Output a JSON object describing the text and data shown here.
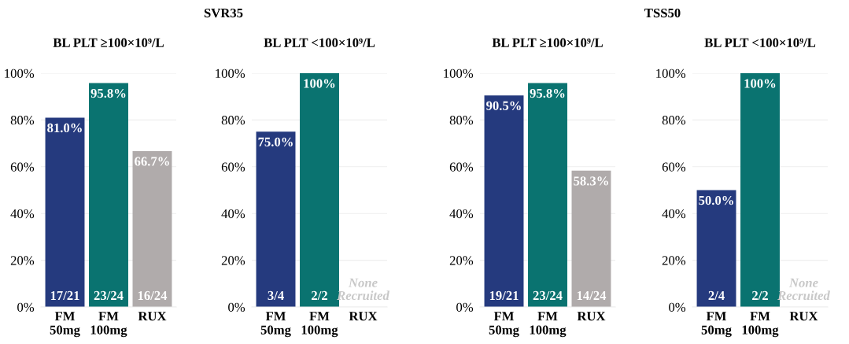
{
  "chart_data": [
    {
      "type": "bar",
      "title": "BL PLT ≥100×10⁹/L",
      "categories": [
        "FM\n50mg",
        "FM\n100mg",
        "RUX"
      ],
      "values": [
        81.0,
        95.8,
        66.7
      ],
      "colors": [
        "#253a7e",
        "#0a7370",
        "#b0abab"
      ],
      "value_labels": [
        "81.0%",
        "95.8%",
        "66.7%"
      ],
      "ylim": [
        0,
        100
      ],
      "yticks": [
        {
          "value": 0,
          "label": "0%"
        },
        {
          "value": 20,
          "label": "20%"
        },
        {
          "value": 40,
          "label": "40%"
        },
        {
          "value": 60,
          "label": "60%"
        },
        {
          "value": 80,
          "label": "80%"
        },
        {
          "value": 100,
          "label": "100%"
        }
      ],
      "grid": "y",
      "annotations": [
        "SVR35",
        "17/21",
        "23/24",
        "16/24"
      ]
    },
    {
      "type": "bar",
      "title": "BL PLT <100×10⁹/L",
      "categories": [
        "FM\n50mg",
        "FM\n100mg",
        "RUX"
      ],
      "values": [
        75.0,
        100,
        null
      ],
      "colors": [
        "#253a7e",
        "#0a7370",
        "#b0abab"
      ],
      "value_labels": [
        "75.0%",
        "100%",
        null
      ],
      "ylim": [
        0,
        100
      ],
      "yticks": [
        {
          "value": 0,
          "label": "0%"
        },
        {
          "value": 20,
          "label": "20%"
        },
        {
          "value": 40,
          "label": "40%"
        },
        {
          "value": 60,
          "label": "60%"
        },
        {
          "value": 80,
          "label": "80%"
        },
        {
          "value": 100,
          "label": "100%"
        }
      ],
      "grid": "y",
      "annotations": [
        "3/4",
        "2/2",
        "None\nRecruited"
      ]
    },
    {
      "type": "bar",
      "title": "BL PLT ≥100×10⁹/L",
      "categories": [
        "FM\n50mg",
        "FM\n100mg",
        "RUX"
      ],
      "values": [
        90.5,
        95.8,
        58.3
      ],
      "colors": [
        "#253a7e",
        "#0a7370",
        "#b0abab"
      ],
      "value_labels": [
        "90.5%",
        "95.8%",
        "58.3%"
      ],
      "ylim": [
        0,
        100
      ],
      "yticks": [
        {
          "value": 0,
          "label": "0%"
        },
        {
          "value": 20,
          "label": "20%"
        },
        {
          "value": 40,
          "label": "40%"
        },
        {
          "value": 60,
          "label": "60%"
        },
        {
          "value": 80,
          "label": "80%"
        },
        {
          "value": 100,
          "label": "100%"
        }
      ],
      "grid": "y",
      "annotations": [
        "TSS50",
        "19/21",
        "23/24",
        "14/24"
      ]
    },
    {
      "type": "bar",
      "title": "BL PLT <100×10⁹/L",
      "categories": [
        "FM\n50mg",
        "FM\n100mg",
        "RUX"
      ],
      "values": [
        50.0,
        100,
        null
      ],
      "colors": [
        "#253a7e",
        "#0a7370",
        "#b0abab"
      ],
      "value_labels": [
        "50.0%",
        "100%",
        null
      ],
      "ylim": [
        0,
        100
      ],
      "yticks": [
        {
          "value": 0,
          "label": "0%"
        },
        {
          "value": 20,
          "label": "20%"
        },
        {
          "value": 40,
          "label": "40%"
        },
        {
          "value": 60,
          "label": "60%"
        },
        {
          "value": 80,
          "label": "80%"
        },
        {
          "value": 100,
          "label": "100%"
        }
      ],
      "grid": "y",
      "annotations": [
        "2/4",
        "2/2",
        "None\nRecruited"
      ]
    }
  ]
}
